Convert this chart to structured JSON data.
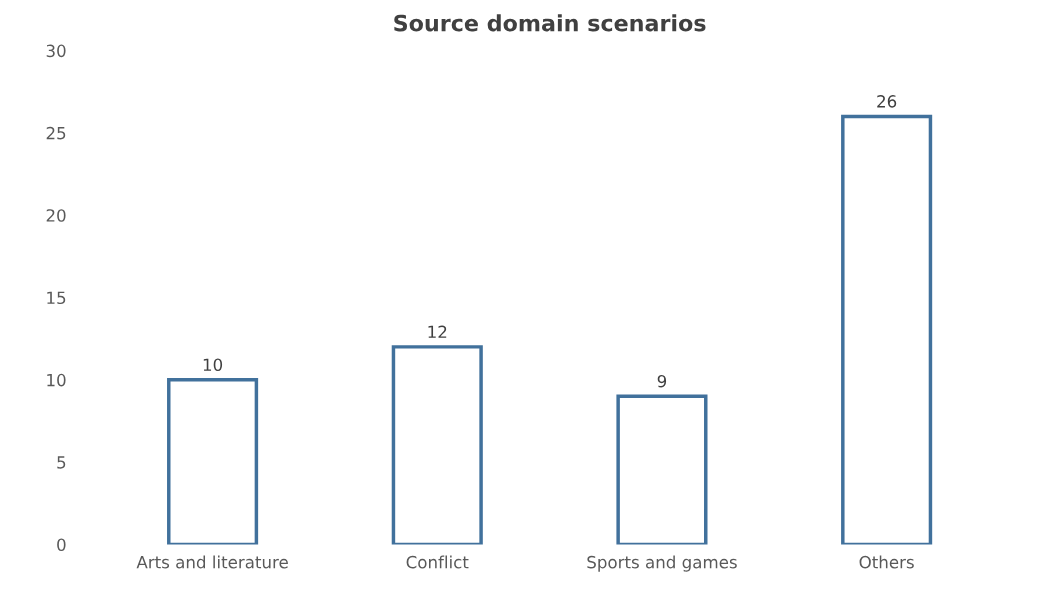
{
  "chart_data": {
    "type": "bar",
    "title": "Source domain scenarios",
    "categories": [
      "Arts and literature",
      "Conflict",
      "Sports and games",
      "Others"
    ],
    "values": [
      10,
      12,
      9,
      26
    ],
    "color": "#41719c",
    "ylim": [
      0,
      30
    ],
    "yticks": [
      0,
      5,
      10,
      15,
      20,
      25,
      30
    ],
    "grid": false,
    "data_labels": true
  }
}
